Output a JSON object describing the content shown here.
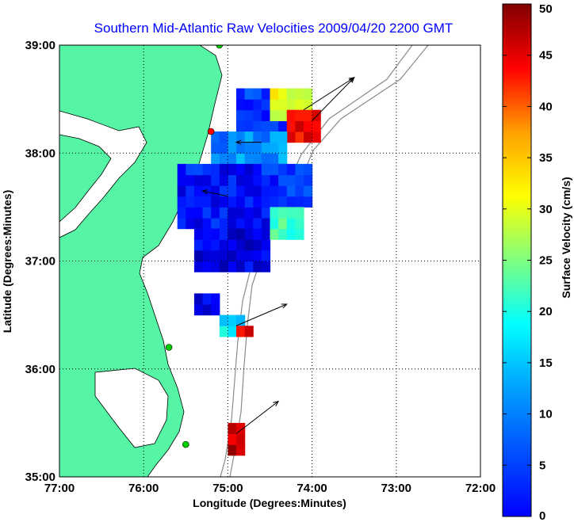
{
  "chart_data": {
    "type": "heatmap",
    "title": "Southern Mid-Atlantic Raw Velocities 2009/04/20 2200 GMT",
    "xlabel": "Longitude (Degrees:Minutes)",
    "ylabel": "Latitude (Degrees:Minutes)",
    "colorbar_label": "Surface Velocity (cm/s)",
    "x_ticks": [
      "77:00",
      "76:00",
      "75:00",
      "74:00",
      "73:00",
      "72:00"
    ],
    "y_ticks": [
      "39:00",
      "38:00",
      "37:00",
      "36:00",
      "35:00"
    ],
    "colorbar_ticks": [
      "50",
      "45",
      "40",
      "35",
      "30",
      "25",
      "20",
      "15",
      "10",
      "5",
      "0"
    ],
    "xlim": [
      -77,
      -72
    ],
    "ylim": [
      35,
      39
    ],
    "clim": [
      0,
      50
    ],
    "grid": true,
    "land_color": "#55f5a5",
    "colormap": "jet",
    "cell_size_deg": 0.1,
    "regions": [
      {
        "lon": [
          -74.9,
          -74.3
        ],
        "lat": [
          38.2,
          38.6
        ],
        "speed": 9
      },
      {
        "lon": [
          -74.5,
          -74.0
        ],
        "lat": [
          38.3,
          38.6
        ],
        "speed": 30
      },
      {
        "lon": [
          -74.3,
          -73.9
        ],
        "lat": [
          38.1,
          38.4
        ],
        "speed": 44
      },
      {
        "lon": [
          -75.2,
          -74.3
        ],
        "lat": [
          37.9,
          38.2
        ],
        "speed": 13
      },
      {
        "lon": [
          -75.6,
          -74.3
        ],
        "lat": [
          37.3,
          37.9
        ],
        "speed": 7
      },
      {
        "lon": [
          -74.6,
          -74.0
        ],
        "lat": [
          37.5,
          37.9
        ],
        "speed": 8
      },
      {
        "lon": [
          -75.4,
          -74.5
        ],
        "lat": [
          36.9,
          37.3
        ],
        "speed": 5
      },
      {
        "lon": [
          -74.5,
          -74.1
        ],
        "lat": [
          37.2,
          37.5
        ],
        "speed": 22
      },
      {
        "lon": [
          -75.4,
          -75.1
        ],
        "lat": [
          36.5,
          36.7
        ],
        "speed": 6
      },
      {
        "lon": [
          -75.1,
          -74.8
        ],
        "lat": [
          36.3,
          36.5
        ],
        "speed": 18
      },
      {
        "lon": [
          -74.9,
          -74.7
        ],
        "lat": [
          36.3,
          36.4
        ],
        "speed": 45
      },
      {
        "lon": [
          -75.0,
          -74.8
        ],
        "lat": [
          35.2,
          35.5
        ],
        "speed": 47
      }
    ],
    "vectors": [
      {
        "lon": -74.1,
        "lat": 38.4,
        "u": 0.6,
        "v": 0.3
      },
      {
        "lon": -74.0,
        "lat": 38.3,
        "u": 0.5,
        "v": 0.4
      },
      {
        "lon": -74.6,
        "lat": 38.1,
        "u": -0.3,
        "v": 0.0
      },
      {
        "lon": -75.0,
        "lat": 37.6,
        "u": -0.3,
        "v": 0.05
      },
      {
        "lon": -74.9,
        "lat": 36.4,
        "u": 0.6,
        "v": 0.2
      },
      {
        "lon": -74.9,
        "lat": 35.4,
        "u": 0.5,
        "v": 0.3
      }
    ],
    "stations": [
      {
        "lon": -75.1,
        "lat": 39.0,
        "color": "#00cc00"
      },
      {
        "lon": -75.2,
        "lat": 38.2,
        "color": "#ff0000"
      },
      {
        "lon": -75.7,
        "lat": 36.2,
        "color": "#00cc00"
      },
      {
        "lon": -75.5,
        "lat": 35.3,
        "color": "#00cc00"
      }
    ]
  }
}
